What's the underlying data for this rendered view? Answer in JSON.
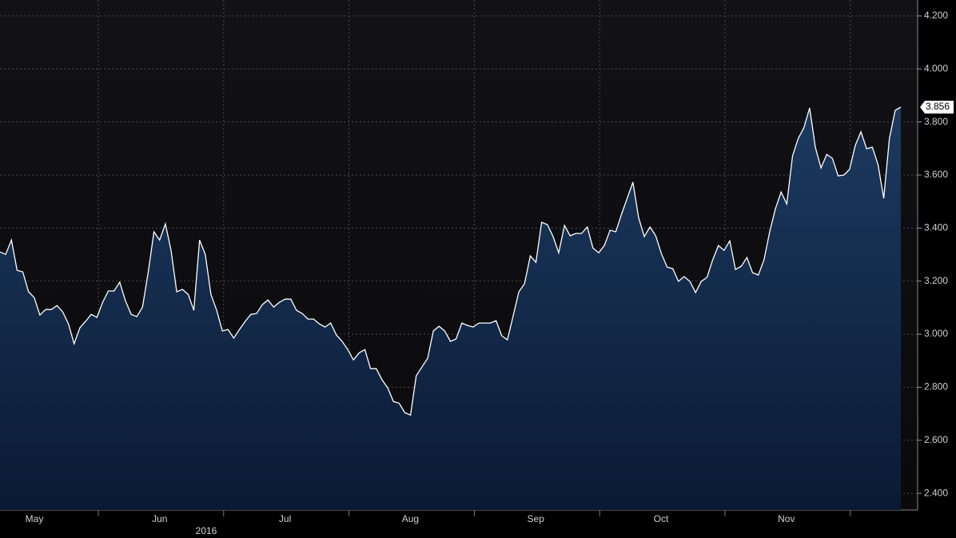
{
  "chart_data": {
    "type": "area",
    "month_labels": [
      "May",
      "Jun",
      "Jul",
      "Aug",
      "Sep",
      "Oct",
      "Nov"
    ],
    "year_label": "2016",
    "series": [
      {
        "color": "#ffffff",
        "fill": "#12294a",
        "values": [
          3.31,
          3.301,
          3.355,
          3.241,
          3.235,
          3.16,
          3.138,
          3.072,
          3.093,
          3.093,
          3.108,
          3.084,
          3.039,
          2.964,
          3.024,
          3.048,
          3.075,
          3.063,
          3.12,
          3.163,
          3.163,
          3.196,
          3.126,
          3.075,
          3.066,
          3.102,
          3.235,
          3.386,
          3.355,
          3.416,
          3.316,
          3.16,
          3.169,
          3.15,
          3.09,
          3.355,
          3.301,
          3.15,
          3.09,
          3.012,
          3.018,
          2.985,
          3.018,
          3.048,
          3.075,
          3.078,
          3.111,
          3.129,
          3.102,
          3.12,
          3.132,
          3.132,
          3.09,
          3.078,
          3.057,
          3.057,
          3.039,
          3.027,
          3.042,
          2.997,
          2.973,
          2.942,
          2.903,
          2.93,
          2.942,
          2.87,
          2.87,
          2.828,
          2.798,
          2.746,
          2.74,
          2.704,
          2.695,
          2.843,
          2.876,
          2.909,
          3.012,
          3.03,
          3.012,
          2.973,
          2.982,
          3.042,
          3.033,
          3.027,
          3.042,
          3.042,
          3.042,
          3.051,
          2.994,
          2.979,
          3.069,
          3.16,
          3.19,
          3.295,
          3.271,
          3.422,
          3.413,
          3.368,
          3.307,
          3.41,
          3.371,
          3.38,
          3.38,
          3.404,
          3.325,
          3.307,
          3.334,
          3.392,
          3.386,
          3.452,
          3.512,
          3.573,
          3.44,
          3.368,
          3.404,
          3.371,
          3.304,
          3.253,
          3.247,
          3.199,
          3.217,
          3.199,
          3.157,
          3.199,
          3.214,
          3.28,
          3.334,
          3.316,
          3.352,
          3.244,
          3.256,
          3.289,
          3.232,
          3.223,
          3.28,
          3.386,
          3.473,
          3.536,
          3.491,
          3.672,
          3.738,
          3.778,
          3.853,
          3.705,
          3.627,
          3.678,
          3.663,
          3.597,
          3.6,
          3.621,
          3.711,
          3.763,
          3.699,
          3.705,
          3.639,
          3.512,
          3.738,
          3.844,
          3.856
        ],
        "value_labels": [
          null,
          null,
          null,
          null,
          null,
          null,
          null,
          null,
          null,
          null,
          null,
          null,
          null,
          null,
          null,
          null,
          null,
          null,
          null,
          null,
          null,
          null,
          null,
          null,
          null,
          null,
          null,
          null,
          null,
          null,
          null,
          null,
          null,
          null,
          null,
          null,
          null,
          null,
          null,
          null,
          null,
          null,
          null,
          null,
          null,
          null,
          null,
          null,
          null,
          null,
          null,
          null,
          null,
          null,
          null,
          null,
          null,
          null,
          null,
          null,
          null,
          null,
          null,
          null,
          null,
          null,
          null,
          null,
          null,
          null,
          null,
          null,
          null,
          null,
          null,
          null,
          null,
          null,
          null,
          null,
          null,
          null,
          null,
          null,
          null,
          null,
          null,
          null,
          null,
          null,
          null,
          null,
          null,
          null,
          null,
          null,
          null,
          null,
          null,
          null,
          null,
          null,
          null,
          null,
          null,
          null,
          null,
          null,
          null,
          null,
          null,
          null,
          null,
          null,
          null,
          null,
          null,
          null,
          null,
          null,
          null,
          null,
          null,
          null,
          null,
          null,
          null,
          null,
          null,
          null,
          null,
          null,
          null,
          null,
          null,
          null,
          null,
          null,
          null,
          null,
          null,
          null,
          null,
          null,
          null,
          null,
          null,
          null,
          null,
          null,
          null,
          null,
          null,
          null,
          null,
          null,
          null,
          null,
          "3.856"
        ]
      }
    ],
    "ylim": [
      2.337,
      4.26
    ],
    "yticks": [
      {
        "value": 2.4,
        "label": "2.400"
      },
      {
        "value": 2.6,
        "label": "2.600"
      },
      {
        "value": 2.8,
        "label": "2.800"
      },
      {
        "value": 3.0,
        "label": "3.000"
      },
      {
        "value": 3.2,
        "label": "3.200"
      },
      {
        "value": 3.4,
        "label": "3.400"
      },
      {
        "value": 3.6,
        "label": "3.600"
      },
      {
        "value": 3.8,
        "label": "3.800"
      },
      {
        "value": 4.0,
        "label": "4.000"
      },
      {
        "value": 4.2,
        "label": "4.200"
      }
    ],
    "grid": true
  }
}
